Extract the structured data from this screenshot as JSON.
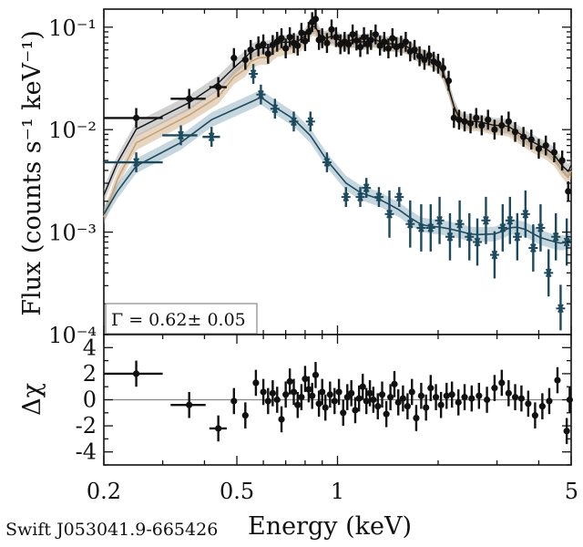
{
  "chart_data": [
    {
      "type": "scatter",
      "panel": "spectrum",
      "xlabel": "Energy (keV)",
      "ylabel": "Flux (counts s⁻¹ keV⁻¹)",
      "xscale": "log",
      "yscale": "log",
      "xlim": [
        0.2,
        5
      ],
      "ylim": [
        0.0001,
        0.15
      ],
      "y_tick_labels": [
        "10⁻⁴",
        "10⁻³",
        "10⁻²",
        "10⁻¹"
      ],
      "y_ticks": [
        0.0001,
        0.001,
        0.01,
        0.1
      ],
      "annotation": "Γ = 0.62± 0.05",
      "colors": {
        "total": "#111111",
        "powerlaw": "#c8a276",
        "thermal": "#1e4a5e",
        "total_band": "#9a9a9a"
      },
      "series": [
        {
          "marker": "circle",
          "points": [
            [
              0.25,
              0.013
            ],
            [
              0.36,
              0.02
            ],
            [
              0.44,
              0.026
            ],
            [
              0.49,
              0.05
            ],
            [
              0.53,
              0.048
            ],
            [
              0.55,
              0.06
            ],
            [
              0.58,
              0.065
            ],
            [
              0.6,
              0.068
            ],
            [
              0.62,
              0.055
            ],
            [
              0.64,
              0.067
            ],
            [
              0.66,
              0.072
            ],
            [
              0.68,
              0.078
            ],
            [
              0.7,
              0.062
            ],
            [
              0.72,
              0.08
            ],
            [
              0.74,
              0.07
            ],
            [
              0.76,
              0.066
            ],
            [
              0.78,
              0.088
            ],
            [
              0.8,
              0.073
            ],
            [
              0.82,
              0.09
            ],
            [
              0.84,
              0.112
            ],
            [
              0.86,
              0.12
            ],
            [
              0.88,
              0.075
            ],
            [
              0.9,
              0.078
            ],
            [
              0.93,
              0.07
            ],
            [
              0.96,
              0.095
            ],
            [
              0.99,
              0.08
            ],
            [
              1.02,
              0.068
            ],
            [
              1.05,
              0.072
            ],
            [
              1.08,
              0.068
            ],
            [
              1.11,
              0.085
            ],
            [
              1.14,
              0.074
            ],
            [
              1.17,
              0.064
            ],
            [
              1.2,
              0.08
            ],
            [
              1.23,
              0.068
            ],
            [
              1.26,
              0.075
            ],
            [
              1.3,
              0.085
            ],
            [
              1.34,
              0.066
            ],
            [
              1.38,
              0.072
            ],
            [
              1.42,
              0.062
            ],
            [
              1.46,
              0.078
            ],
            [
              1.5,
              0.064
            ],
            [
              1.55,
              0.066
            ],
            [
              1.6,
              0.072
            ],
            [
              1.65,
              0.058
            ],
            [
              1.7,
              0.06
            ],
            [
              1.76,
              0.052
            ],
            [
              1.82,
              0.048
            ],
            [
              1.88,
              0.053
            ],
            [
              1.94,
              0.046
            ],
            [
              2.0,
              0.044
            ],
            [
              2.07,
              0.04
            ],
            [
              2.15,
              0.03
            ],
            [
              2.23,
              0.013
            ],
            [
              2.31,
              0.0125
            ],
            [
              2.4,
              0.012
            ],
            [
              2.5,
              0.0115
            ],
            [
              2.6,
              0.013
            ],
            [
              2.7,
              0.011
            ],
            [
              2.82,
              0.0125
            ],
            [
              2.95,
              0.01
            ],
            [
              3.1,
              0.011
            ],
            [
              3.25,
              0.012
            ],
            [
              3.4,
              0.0095
            ],
            [
              3.6,
              0.0085
            ],
            [
              3.8,
              0.008
            ],
            [
              4.0,
              0.0065
            ],
            [
              4.2,
              0.007
            ],
            [
              4.45,
              0.006
            ],
            [
              4.7,
              0.005
            ],
            [
              4.9,
              0.0025
            ]
          ]
        },
        {
          "marker": "star",
          "points": [
            [
              0.25,
              0.0048
            ],
            [
              0.34,
              0.0088
            ],
            [
              0.42,
              0.0085
            ],
            [
              0.56,
              0.035
            ],
            [
              0.59,
              0.022
            ],
            [
              0.65,
              0.016
            ],
            [
              0.74,
              0.012
            ],
            [
              0.83,
              0.012
            ],
            [
              0.93,
              0.0048
            ],
            [
              1.06,
              0.0022
            ],
            [
              1.17,
              0.0022
            ],
            [
              1.22,
              0.0027
            ],
            [
              1.33,
              0.0022
            ],
            [
              1.43,
              0.0015
            ],
            [
              1.53,
              0.0022
            ],
            [
              1.65,
              0.0012
            ],
            [
              1.78,
              0.0011
            ],
            [
              1.9,
              0.0011
            ],
            [
              2.02,
              0.0013
            ],
            [
              2.17,
              0.0009
            ],
            [
              2.32,
              0.0012
            ],
            [
              2.48,
              0.0009
            ],
            [
              2.62,
              0.0008
            ],
            [
              2.78,
              0.0013
            ],
            [
              2.95,
              0.0006
            ],
            [
              3.12,
              0.0011
            ],
            [
              3.28,
              0.0013
            ],
            [
              3.45,
              0.0009
            ],
            [
              3.65,
              0.0015
            ],
            [
              3.85,
              0.0007
            ],
            [
              4.05,
              0.0011
            ],
            [
              4.28,
              0.0004
            ],
            [
              4.5,
              0.0009
            ],
            [
              4.65,
              0.00018
            ],
            [
              4.85,
              0.0008
            ]
          ]
        }
      ]
    },
    {
      "type": "scatter",
      "panel": "residuals",
      "xlabel": "Energy (keV)",
      "ylabel": "Δχ",
      "xscale": "log",
      "xlim": [
        0.2,
        5
      ],
      "ylim": [
        -5,
        5
      ],
      "x_ticks": [
        0.2,
        0.5,
        1,
        5
      ],
      "x_tick_labels": [
        "0.2",
        "0.5",
        "1",
        "5"
      ],
      "y_ticks": [
        -4,
        -2,
        0,
        2,
        4
      ],
      "y_tick_labels": [
        "-4",
        "-2",
        "0",
        "2",
        "4"
      ],
      "reference_line": 0,
      "points": [
        [
          0.25,
          2.0
        ],
        [
          0.36,
          -0.4
        ],
        [
          0.44,
          -2.2
        ],
        [
          0.49,
          -0.1
        ],
        [
          0.53,
          -1.2
        ],
        [
          0.57,
          1.3
        ],
        [
          0.6,
          0.6
        ],
        [
          0.62,
          -0.1
        ],
        [
          0.64,
          0.5
        ],
        [
          0.66,
          0.0
        ],
        [
          0.68,
          -1.5
        ],
        [
          0.7,
          0.4
        ],
        [
          0.72,
          1.4
        ],
        [
          0.74,
          0.6
        ],
        [
          0.76,
          -0.4
        ],
        [
          0.78,
          0.2
        ],
        [
          0.8,
          1.6
        ],
        [
          0.82,
          0.8
        ],
        [
          0.84,
          0.3
        ],
        [
          0.86,
          1.9
        ],
        [
          0.88,
          -0.3
        ],
        [
          0.9,
          0.6
        ],
        [
          0.92,
          -0.6
        ],
        [
          0.95,
          0.4
        ],
        [
          0.98,
          -0.1
        ],
        [
          1.01,
          0.6
        ],
        [
          1.04,
          -1.0
        ],
        [
          1.07,
          0.2
        ],
        [
          1.1,
          0.5
        ],
        [
          1.13,
          -0.8
        ],
        [
          1.16,
          0.1
        ],
        [
          1.19,
          1.0
        ],
        [
          1.22,
          -0.1
        ],
        [
          1.25,
          0.5
        ],
        [
          1.28,
          0.0
        ],
        [
          1.32,
          -0.5
        ],
        [
          1.36,
          0.4
        ],
        [
          1.4,
          -1.1
        ],
        [
          1.44,
          0.2
        ],
        [
          1.48,
          1.2
        ],
        [
          1.52,
          -0.2
        ],
        [
          1.57,
          0.1
        ],
        [
          1.62,
          -0.5
        ],
        [
          1.67,
          0.6
        ],
        [
          1.72,
          -1.4
        ],
        [
          1.78,
          0.3
        ],
        [
          1.84,
          -0.6
        ],
        [
          1.9,
          0.9
        ],
        [
          1.97,
          0.2
        ],
        [
          2.04,
          -0.4
        ],
        [
          2.12,
          0.3
        ],
        [
          2.2,
          0.4
        ],
        [
          2.3,
          -0.2
        ],
        [
          2.4,
          0.2
        ],
        [
          2.52,
          0.1
        ],
        [
          2.65,
          0.3
        ],
        [
          2.8,
          0.0
        ],
        [
          2.95,
          0.9
        ],
        [
          3.1,
          1.3
        ],
        [
          3.25,
          0.5
        ],
        [
          3.4,
          0.2
        ],
        [
          3.55,
          0.1
        ],
        [
          3.72,
          -0.3
        ],
        [
          3.9,
          -1.2
        ],
        [
          4.1,
          -0.5
        ],
        [
          4.3,
          -0.1
        ],
        [
          4.55,
          1.5
        ],
        [
          4.85,
          -2.4
        ],
        [
          4.95,
          0.0
        ]
      ]
    }
  ],
  "footer": {
    "source_label": "Swift J053041.9-665426"
  }
}
